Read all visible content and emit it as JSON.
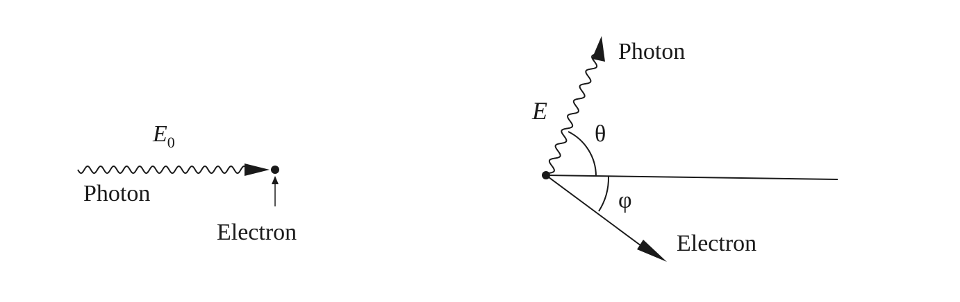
{
  "before": {
    "incident_energy": {
      "symbol": "E",
      "subscript": "0"
    },
    "photon_label": "Photon",
    "electron_label": "Electron"
  },
  "after": {
    "scattered_energy": "E",
    "photon_label": "Photon",
    "electron_label": "Electron",
    "photon_angle": "θ",
    "electron_angle": "φ"
  },
  "colors": {
    "ink": "#1a1a1a",
    "background": "#ffffff"
  }
}
